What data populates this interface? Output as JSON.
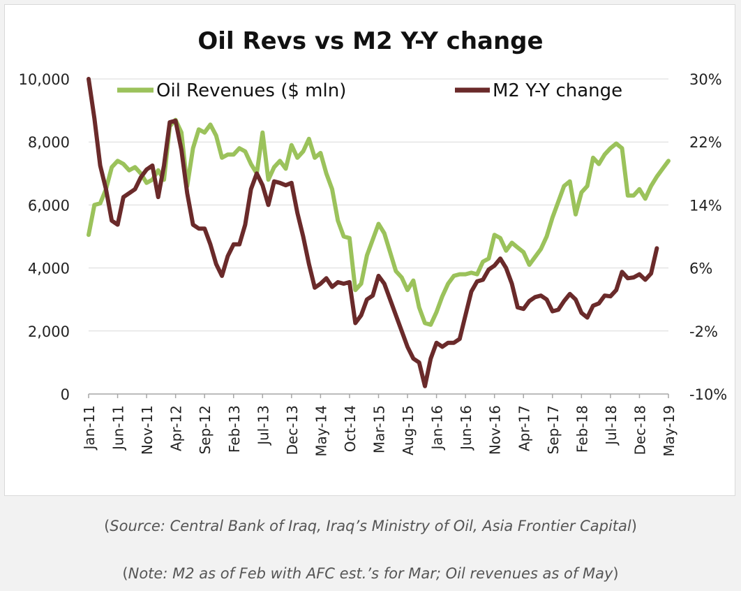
{
  "chart_data": {
    "type": "line",
    "title": "Oil Revs vs M2 Y-Y change",
    "xlabel": "",
    "ylabel": "",
    "ylim": [
      0,
      10000
    ],
    "y2lim": [
      -10,
      30
    ],
    "left_ticks": [
      "0",
      "2,000",
      "4,000",
      "6,000",
      "8,000",
      "10,000"
    ],
    "right_ticks": [
      "-10%",
      "-2%",
      "6%",
      "14%",
      "22%",
      "30%"
    ],
    "x_tick_labels": [
      "Jan-11",
      "Jun-11",
      "Nov-11",
      "Apr-12",
      "Sep-12",
      "Feb-13",
      "Jul-13",
      "Dec-13",
      "May-14",
      "Oct-14",
      "Mar-15",
      "Aug-15",
      "Jan-16",
      "Jun-16",
      "Nov-16",
      "Apr-17",
      "Sep-17",
      "Feb-18",
      "Jul-18",
      "Dec-18",
      "May-19"
    ],
    "grid": true,
    "legend_placement": "top",
    "series": [
      {
        "name": "Oil Revenues ($ mln)",
        "axis": "left",
        "color": "#9bc25b",
        "points": [
          [
            "Jan-11",
            5050
          ],
          [
            "Feb-11",
            6000
          ],
          [
            "Mar-11",
            6050
          ],
          [
            "Apr-11",
            6500
          ],
          [
            "May-11",
            7200
          ],
          [
            "Jun-11",
            7400
          ],
          [
            "Jul-11",
            7300
          ],
          [
            "Aug-11",
            7100
          ],
          [
            "Sep-11",
            7200
          ],
          [
            "Oct-11",
            7000
          ],
          [
            "Nov-11",
            6700
          ],
          [
            "Dec-11",
            6800
          ],
          [
            "Jan-12",
            7100
          ],
          [
            "Feb-12",
            6800
          ],
          [
            "Mar-12",
            8500
          ],
          [
            "Apr-12",
            8700
          ],
          [
            "May-12",
            8300
          ],
          [
            "Jun-12",
            6600
          ],
          [
            "Jul-12",
            7800
          ],
          [
            "Aug-12",
            8400
          ],
          [
            "Sep-12",
            8300
          ],
          [
            "Oct-12",
            8550
          ],
          [
            "Nov-12",
            8200
          ],
          [
            "Dec-12",
            7500
          ],
          [
            "Jan-13",
            7600
          ],
          [
            "Feb-13",
            7600
          ],
          [
            "Mar-13",
            7800
          ],
          [
            "Apr-13",
            7700
          ],
          [
            "May-13",
            7300
          ],
          [
            "Jun-13",
            7000
          ],
          [
            "Jul-13",
            8300
          ],
          [
            "Aug-13",
            6800
          ],
          [
            "Sep-13",
            7200
          ],
          [
            "Oct-13",
            7400
          ],
          [
            "Nov-13",
            7150
          ],
          [
            "Dec-13",
            7900
          ],
          [
            "Jan-14",
            7500
          ],
          [
            "Feb-14",
            7700
          ],
          [
            "Mar-14",
            8100
          ],
          [
            "Apr-14",
            7500
          ],
          [
            "May-14",
            7650
          ],
          [
            "Jun-14",
            7000
          ],
          [
            "Jul-14",
            6500
          ],
          [
            "Aug-14",
            5500
          ],
          [
            "Sep-14",
            5000
          ],
          [
            "Oct-14",
            4950
          ],
          [
            "Nov-14",
            3300
          ],
          [
            "Dec-14",
            3500
          ],
          [
            "Jan-15",
            4400
          ],
          [
            "Feb-15",
            4900
          ],
          [
            "Mar-15",
            5400
          ],
          [
            "Apr-15",
            5100
          ],
          [
            "May-15",
            4500
          ],
          [
            "Jun-15",
            3900
          ],
          [
            "Jul-15",
            3700
          ],
          [
            "Aug-15",
            3300
          ],
          [
            "Sep-15",
            3600
          ],
          [
            "Oct-15",
            2750
          ],
          [
            "Nov-15",
            2250
          ],
          [
            "Dec-15",
            2200
          ],
          [
            "Jan-16",
            2600
          ],
          [
            "Feb-16",
            3100
          ],
          [
            "Mar-16",
            3500
          ],
          [
            "Apr-16",
            3750
          ],
          [
            "May-16",
            3800
          ],
          [
            "Jun-16",
            3800
          ],
          [
            "Jul-16",
            3850
          ],
          [
            "Aug-16",
            3800
          ],
          [
            "Sep-16",
            4200
          ],
          [
            "Oct-16",
            4300
          ],
          [
            "Nov-16",
            5050
          ],
          [
            "Dec-16",
            4950
          ],
          [
            "Jan-17",
            4550
          ],
          [
            "Feb-17",
            4800
          ],
          [
            "Mar-17",
            4650
          ],
          [
            "Apr-17",
            4500
          ],
          [
            "May-17",
            4100
          ],
          [
            "Jun-17",
            4350
          ],
          [
            "Jul-17",
            4600
          ],
          [
            "Aug-17",
            5000
          ],
          [
            "Sep-17",
            5600
          ],
          [
            "Oct-17",
            6100
          ],
          [
            "Nov-17",
            6600
          ],
          [
            "Dec-17",
            6750
          ],
          [
            "Jan-18",
            5700
          ],
          [
            "Feb-18",
            6400
          ],
          [
            "Mar-18",
            6600
          ],
          [
            "Apr-18",
            7500
          ],
          [
            "May-18",
            7300
          ],
          [
            "Jun-18",
            7600
          ],
          [
            "Jul-18",
            7800
          ],
          [
            "Aug-18",
            7950
          ],
          [
            "Sep-18",
            7800
          ],
          [
            "Oct-18",
            6300
          ],
          [
            "Nov-18",
            6300
          ],
          [
            "Dec-18",
            6500
          ],
          [
            "Jan-19",
            6200
          ],
          [
            "Feb-19",
            6600
          ],
          [
            "Mar-19",
            6900
          ],
          [
            "Apr-19",
            7150
          ],
          [
            "May-19",
            7400
          ]
        ]
      },
      {
        "name": "M2 Y-Y change",
        "axis": "right",
        "color": "#6a2a2a",
        "points": [
          [
            "Jan-11",
            30
          ],
          [
            "Feb-11",
            25
          ],
          [
            "Mar-11",
            19
          ],
          [
            "Apr-11",
            16
          ],
          [
            "May-11",
            12
          ],
          [
            "Jun-11",
            11.5
          ],
          [
            "Jul-11",
            15
          ],
          [
            "Aug-11",
            15.5
          ],
          [
            "Sep-11",
            16
          ],
          [
            "Oct-11",
            17.5
          ],
          [
            "Nov-11",
            18.5
          ],
          [
            "Dec-11",
            19
          ],
          [
            "Jan-12",
            15
          ],
          [
            "Feb-12",
            19
          ],
          [
            "Mar-12",
            24.5
          ],
          [
            "Apr-12",
            24.7
          ],
          [
            "May-12",
            21
          ],
          [
            "Jun-12",
            15.5
          ],
          [
            "Jul-12",
            11.5
          ],
          [
            "Aug-12",
            11
          ],
          [
            "Sep-12",
            11
          ],
          [
            "Oct-12",
            9
          ],
          [
            "Nov-12",
            6.5
          ],
          [
            "Dec-12",
            5
          ],
          [
            "Jan-13",
            7.5
          ],
          [
            "Feb-13",
            9
          ],
          [
            "Mar-13",
            9
          ],
          [
            "Apr-13",
            11.5
          ],
          [
            "May-13",
            16
          ],
          [
            "Jun-13",
            18
          ],
          [
            "Jul-13",
            16.5
          ],
          [
            "Aug-13",
            14
          ],
          [
            "Sep-13",
            17
          ],
          [
            "Oct-13",
            16.8
          ],
          [
            "Nov-13",
            16.5
          ],
          [
            "Dec-13",
            16.8
          ],
          [
            "Jan-14",
            13
          ],
          [
            "Feb-14",
            10
          ],
          [
            "Mar-14",
            6.5
          ],
          [
            "Apr-14",
            3.5
          ],
          [
            "May-14",
            4
          ],
          [
            "Jun-14",
            4.7
          ],
          [
            "Jul-14",
            3.6
          ],
          [
            "Aug-14",
            4.2
          ],
          [
            "Sep-14",
            4
          ],
          [
            "Oct-14",
            4.2
          ],
          [
            "Nov-14",
            -1
          ],
          [
            "Dec-14",
            0
          ],
          [
            "Jan-15",
            2
          ],
          [
            "Feb-15",
            2.5
          ],
          [
            "Mar-15",
            5
          ],
          [
            "Apr-15",
            4
          ],
          [
            "May-15",
            2
          ],
          [
            "Jun-15",
            0
          ],
          [
            "Jul-15",
            -2
          ],
          [
            "Aug-15",
            -4
          ],
          [
            "Sep-15",
            -5.5
          ],
          [
            "Oct-15",
            -6
          ],
          [
            "Nov-15",
            -9
          ],
          [
            "Dec-15",
            -5.5
          ],
          [
            "Jan-16",
            -3.5
          ],
          [
            "Feb-16",
            -4
          ],
          [
            "Mar-16",
            -3.5
          ],
          [
            "Apr-16",
            -3.5
          ],
          [
            "May-16",
            -3
          ],
          [
            "Jun-16",
            0
          ],
          [
            "Jul-16",
            3
          ],
          [
            "Aug-16",
            4.3
          ],
          [
            "Sep-16",
            4.5
          ],
          [
            "Oct-16",
            5.8
          ],
          [
            "Nov-16",
            6.3
          ],
          [
            "Dec-16",
            7.2
          ],
          [
            "Jan-17",
            6
          ],
          [
            "Feb-17",
            4
          ],
          [
            "Mar-17",
            1
          ],
          [
            "Apr-17",
            0.8
          ],
          [
            "May-17",
            1.8
          ],
          [
            "Jun-17",
            2.3
          ],
          [
            "Jul-17",
            2.5
          ],
          [
            "Aug-17",
            2
          ],
          [
            "Sep-17",
            0.5
          ],
          [
            "Oct-17",
            0.7
          ],
          [
            "Nov-17",
            1.8
          ],
          [
            "Dec-17",
            2.7
          ],
          [
            "Jan-18",
            2
          ],
          [
            "Feb-18",
            0.3
          ],
          [
            "Mar-18",
            -0.3
          ],
          [
            "Apr-18",
            1.2
          ],
          [
            "May-18",
            1.5
          ],
          [
            "Jun-18",
            2.5
          ],
          [
            "Jul-18",
            2.4
          ],
          [
            "Aug-18",
            3.2
          ],
          [
            "Sep-18",
            5.5
          ],
          [
            "Oct-18",
            4.7
          ],
          [
            "Nov-18",
            4.8
          ],
          [
            "Dec-18",
            5.2
          ],
          [
            "Jan-19",
            4.5
          ],
          [
            "Feb-19",
            5.3
          ],
          [
            "Mar-19",
            8.5
          ]
        ]
      }
    ]
  },
  "captions": {
    "source_open": "(",
    "source_text": "Source: Central Bank of Iraq, Iraq’s Ministry of Oil, Asia Frontier Capital",
    "source_close": ")",
    "note_open": "(",
    "note_text": "Note: M2 as of Feb with AFC est.’s for Mar; Oil revenues as of May",
    "note_close": ")"
  }
}
